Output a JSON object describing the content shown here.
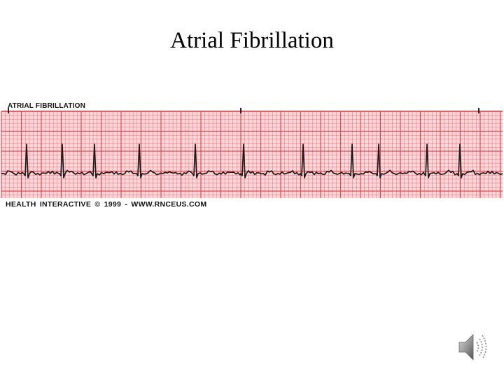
{
  "slide": {
    "title": "Atrial Fibrillation"
  },
  "rhythm_strip": {
    "label": "ATRIAL FIBRILLATION",
    "credit": "HEALTH  INTERACTIVE © 1999 - WWW.RNCEUS.COM",
    "grid_color": "#e8404a",
    "background_color": "#fbd7d9",
    "trace_color": "#1a1a1a",
    "qrs_complexes": 14
  },
  "icons": {
    "audio": "speaker-icon"
  }
}
